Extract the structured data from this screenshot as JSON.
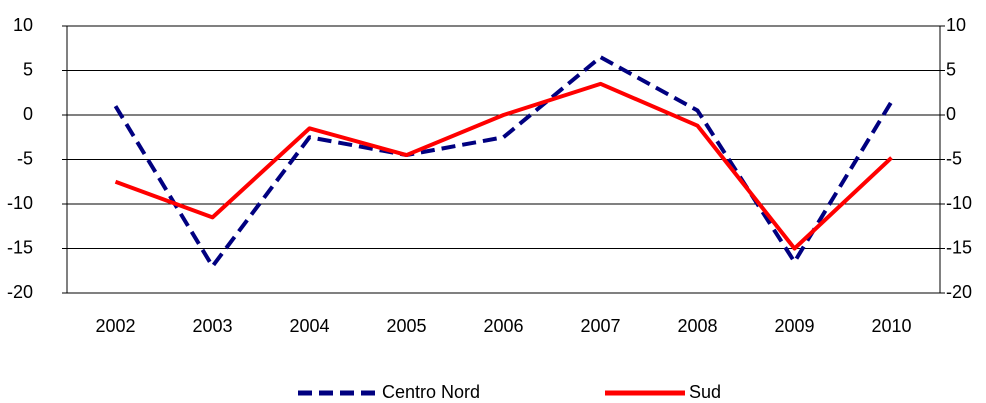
{
  "chart_data": {
    "type": "line",
    "categories": [
      "2002",
      "2003",
      "2004",
      "2005",
      "2006",
      "2007",
      "2008",
      "2009",
      "2010"
    ],
    "series": [
      {
        "name": "Centro Nord",
        "color": "#000080",
        "dashed": true,
        "values": [
          1,
          -17,
          -2.5,
          -4.5,
          -2.5,
          6.5,
          0.5,
          -16.5,
          1.5
        ]
      },
      {
        "name": "Sud",
        "color": "#ff0000",
        "dashed": false,
        "values": [
          -7.5,
          -11.5,
          -1.5,
          -4.5,
          0,
          3.5,
          -1.2,
          -15,
          -4.8
        ]
      }
    ],
    "ylim": [
      -20,
      10
    ],
    "yticks": [
      -20,
      -15,
      -10,
      -5,
      0,
      5,
      10
    ],
    "y2lim": [
      -20,
      10
    ],
    "y2ticks": [
      -20,
      -15,
      -10,
      -5,
      0,
      5,
      10
    ],
    "grid": true,
    "legend": "bottom"
  }
}
